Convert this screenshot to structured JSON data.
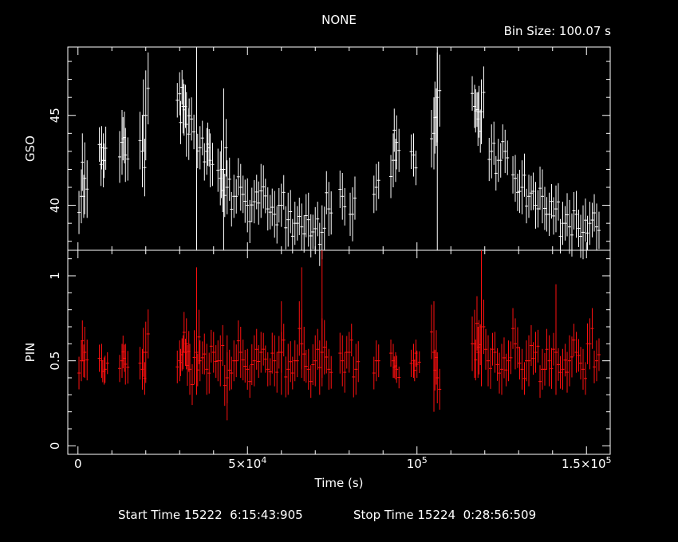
{
  "title": "NONE",
  "bin_size_label": "Bin Size: 100.07 s",
  "footer": {
    "start_label": "Start Time",
    "start_value": "15222  6:15:43:905",
    "stop_label": "Stop Time",
    "stop_value": "15224  0:28:56:509"
  },
  "chart_data": {
    "type": "line",
    "xlabel": "Time (s)",
    "xlim": [
      -3000,
      157000
    ],
    "x_ticks": [
      {
        "value": 0,
        "label": "0"
      },
      {
        "value": 50000,
        "label": "5×10^4"
      },
      {
        "value": 100000,
        "label": "10^5"
      },
      {
        "value": 150000,
        "label": "1.5×10^5"
      }
    ],
    "panels": [
      {
        "name": "GSO",
        "ylabel": "GSO",
        "color": "#ffffff",
        "ylim": [
          37.5,
          48.8
        ],
        "y_ticks": [
          40,
          45
        ],
        "points": [
          [
            1000,
            40.5,
            1.5
          ],
          [
            2000,
            41.5,
            2.0
          ],
          [
            7000,
            43.2,
            1.2
          ],
          [
            7500,
            42.5,
            1.5
          ],
          [
            13000,
            43.5,
            1.8
          ],
          [
            14000,
            42.8,
            1.5
          ],
          [
            19000,
            43.0,
            2.0
          ],
          [
            20000,
            45.0,
            2.5
          ],
          [
            30000,
            46.2,
            1.2
          ],
          [
            31000,
            45.5,
            1.5
          ],
          [
            32000,
            44.5,
            1.8
          ],
          [
            33500,
            44.8,
            1.2
          ],
          [
            36000,
            43.2,
            1.2
          ],
          [
            38000,
            43.0,
            1.3
          ],
          [
            39000,
            42.5,
            1.5
          ],
          [
            42000,
            41.5,
            1.5
          ],
          [
            43000,
            42.0,
            2.0
          ],
          [
            44000,
            41.0,
            1.5
          ],
          [
            46000,
            40.5,
            1.2
          ],
          [
            48000,
            41.0,
            1.3
          ],
          [
            50000,
            40.0,
            1.5
          ],
          [
            52000,
            40.2,
            1.2
          ],
          [
            54000,
            40.8,
            1.5
          ],
          [
            56000,
            39.8,
            1.2
          ],
          [
            58000,
            39.5,
            1.3
          ],
          [
            60000,
            40.0,
            1.2
          ],
          [
            62000,
            39.2,
            1.5
          ],
          [
            64000,
            39.0,
            1.2
          ],
          [
            66000,
            38.8,
            1.3
          ],
          [
            68000,
            39.2,
            1.5
          ],
          [
            70000,
            38.7,
            1.2
          ],
          [
            72000,
            38.5,
            1.5
          ],
          [
            74000,
            39.8,
            1.5
          ],
          [
            78000,
            40.5,
            1.3
          ],
          [
            81000,
            39.5,
            1.5
          ],
          [
            88000,
            41.0,
            1.3
          ],
          [
            93000,
            42.5,
            1.5
          ],
          [
            94000,
            43.5,
            1.5
          ],
          [
            99000,
            42.8,
            1.2
          ],
          [
            105000,
            44.0,
            2.0
          ],
          [
            106000,
            46.0,
            2.5
          ],
          [
            117000,
            45.5,
            1.2
          ],
          [
            118000,
            44.8,
            1.5
          ],
          [
            119000,
            45.2,
            1.8
          ],
          [
            122000,
            43.0,
            1.5
          ],
          [
            124000,
            42.5,
            1.2
          ],
          [
            126000,
            43.0,
            1.2
          ],
          [
            129000,
            41.5,
            1.3
          ],
          [
            131000,
            41.0,
            1.5
          ],
          [
            133000,
            40.5,
            1.2
          ],
          [
            135000,
            40.0,
            1.3
          ],
          [
            137000,
            40.5,
            1.5
          ],
          [
            139000,
            39.5,
            1.2
          ],
          [
            141000,
            39.8,
            1.3
          ],
          [
            143000,
            39.0,
            1.2
          ],
          [
            145000,
            38.8,
            1.5
          ],
          [
            147000,
            39.5,
            1.3
          ],
          [
            149000,
            38.5,
            1.5
          ],
          [
            151000,
            39.0,
            1.2
          ],
          [
            153000,
            38.8,
            1.3
          ]
        ],
        "spikes": [
          [
            35000,
            37.5,
            48.8
          ],
          [
            43000,
            37.5,
            46.5
          ],
          [
            106000,
            37.5,
            48.8
          ]
        ]
      },
      {
        "name": "PIN",
        "ylabel": "PIN",
        "color": "#ff1010",
        "ylim": [
          -0.05,
          1.15
        ],
        "y_ticks": [
          0,
          0.5,
          1
        ],
        "points": [
          [
            1000,
            0.5,
            0.12
          ],
          [
            2000,
            0.55,
            0.15
          ],
          [
            7000,
            0.5,
            0.1
          ],
          [
            8000,
            0.45,
            0.08
          ],
          [
            13000,
            0.5,
            0.1
          ],
          [
            14000,
            0.48,
            0.12
          ],
          [
            19000,
            0.45,
            0.12
          ],
          [
            20000,
            0.55,
            0.18
          ],
          [
            30000,
            0.5,
            0.12
          ],
          [
            31000,
            0.55,
            0.1
          ],
          [
            32000,
            0.6,
            0.15
          ],
          [
            33000,
            0.45,
            0.15
          ],
          [
            35000,
            0.55,
            0.2
          ],
          [
            36000,
            0.5,
            0.12
          ],
          [
            38000,
            0.45,
            0.15
          ],
          [
            40000,
            0.55,
            0.12
          ],
          [
            42000,
            0.5,
            0.15
          ],
          [
            44000,
            0.4,
            0.15
          ],
          [
            46000,
            0.5,
            0.12
          ],
          [
            48000,
            0.55,
            0.15
          ],
          [
            50000,
            0.45,
            0.12
          ],
          [
            52000,
            0.5,
            0.15
          ],
          [
            54000,
            0.55,
            0.12
          ],
          [
            56000,
            0.45,
            0.1
          ],
          [
            58000,
            0.5,
            0.15
          ],
          [
            60000,
            0.55,
            0.12
          ],
          [
            62000,
            0.45,
            0.15
          ],
          [
            64000,
            0.5,
            0.12
          ],
          [
            66000,
            0.6,
            0.2
          ],
          [
            68000,
            0.45,
            0.12
          ],
          [
            70000,
            0.5,
            0.15
          ],
          [
            72000,
            0.55,
            0.2
          ],
          [
            74000,
            0.45,
            0.12
          ],
          [
            78000,
            0.5,
            0.15
          ],
          [
            80000,
            0.55,
            0.12
          ],
          [
            82000,
            0.45,
            0.15
          ],
          [
            88000,
            0.5,
            0.12
          ],
          [
            93000,
            0.5,
            0.1
          ],
          [
            94000,
            0.45,
            0.08
          ],
          [
            99000,
            0.5,
            0.1
          ],
          [
            100000,
            0.48,
            0.08
          ],
          [
            105000,
            0.55,
            0.2
          ],
          [
            106000,
            0.4,
            0.15
          ],
          [
            117000,
            0.6,
            0.2
          ],
          [
            118000,
            0.55,
            0.15
          ],
          [
            119000,
            0.7,
            0.2
          ],
          [
            121000,
            0.5,
            0.15
          ],
          [
            123000,
            0.55,
            0.12
          ],
          [
            125000,
            0.45,
            0.15
          ],
          [
            127000,
            0.5,
            0.12
          ],
          [
            129000,
            0.6,
            0.15
          ],
          [
            131000,
            0.45,
            0.12
          ],
          [
            133000,
            0.5,
            0.15
          ],
          [
            135000,
            0.55,
            0.12
          ],
          [
            137000,
            0.45,
            0.12
          ],
          [
            139000,
            0.5,
            0.15
          ],
          [
            141000,
            0.55,
            0.12
          ],
          [
            143000,
            0.45,
            0.12
          ],
          [
            145000,
            0.5,
            0.15
          ],
          [
            147000,
            0.55,
            0.12
          ],
          [
            149000,
            0.45,
            0.12
          ],
          [
            151000,
            0.6,
            0.15
          ],
          [
            153000,
            0.5,
            0.12
          ]
        ],
        "spikes": [
          [
            35000,
            0.3,
            1.05
          ],
          [
            44000,
            0.15,
            0.65
          ],
          [
            60000,
            0.3,
            0.85
          ],
          [
            66000,
            0.45,
            1.05
          ],
          [
            72000,
            0.4,
            1.15
          ],
          [
            105000,
            0.2,
            0.85
          ],
          [
            119000,
            0.35,
            1.15
          ],
          [
            141000,
            0.3,
            0.95
          ]
        ]
      }
    ]
  }
}
